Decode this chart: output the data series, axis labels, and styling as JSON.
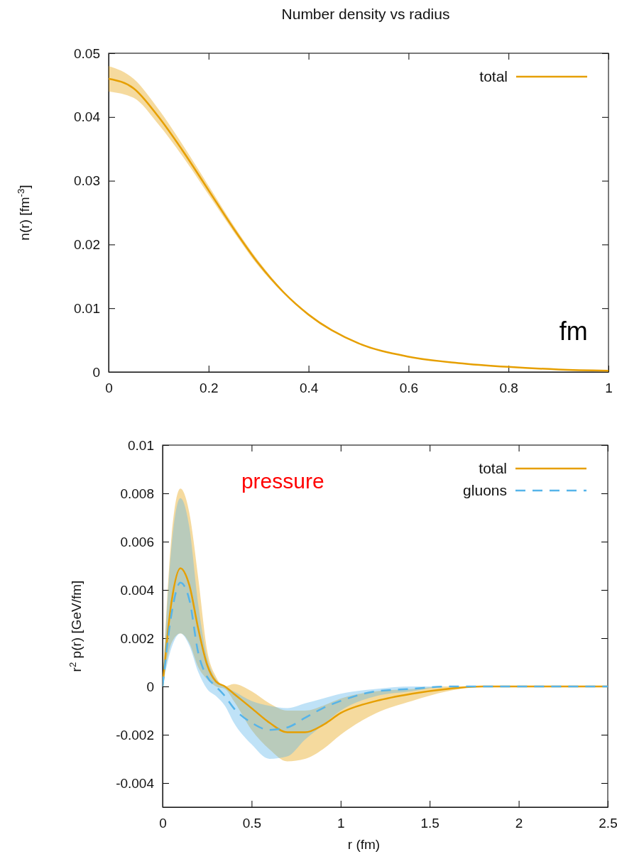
{
  "chart_data": [
    {
      "type": "line",
      "title": "Number density vs radius",
      "ylabel": "n(r) [fm$^{-3}$]",
      "annotations": [
        "fm"
      ],
      "x": [
        0,
        0.05,
        0.1,
        0.15,
        0.2,
        0.25,
        0.3,
        0.35,
        0.4,
        0.5,
        0.6,
        0.7,
        0.8,
        0.9,
        1.0
      ],
      "series": [
        {
          "name": "total",
          "color": "#e69f00",
          "values": [
            0.046,
            0.0445,
            0.04,
            0.0345,
            0.0285,
            0.0225,
            0.017,
            0.0125,
            0.009,
            0.0045,
            0.0024,
            0.0014,
            0.0008,
            0.0004,
            0.0002
          ],
          "lower": [
            0.044,
            0.043,
            0.0388,
            0.0336,
            0.0278,
            0.022,
            0.0166,
            0.0123,
            0.0088,
            0.0045,
            0.0024,
            0.0014,
            0.0008,
            0.0004,
            0.0002
          ],
          "upper": [
            0.048,
            0.046,
            0.0412,
            0.0354,
            0.0292,
            0.023,
            0.0174,
            0.0127,
            0.0092,
            0.0045,
            0.0024,
            0.0014,
            0.0008,
            0.0004,
            0.0002
          ]
        }
      ],
      "xlim": [
        0,
        1
      ],
      "xticks": [
        0,
        0.2,
        0.4,
        0.6,
        0.8,
        1
      ],
      "ylim": [
        0,
        0.05
      ],
      "yticks": [
        0,
        0.01,
        0.02,
        0.03,
        0.04,
        0.05
      ],
      "legend": "top right",
      "grid": false
    },
    {
      "type": "line",
      "xlabel": "r (fm)",
      "ylabel": "r$^{2}$ p(r) [GeV/fm]",
      "annotations": [
        "pressure"
      ],
      "x": [
        0,
        0.05,
        0.1,
        0.15,
        0.2,
        0.25,
        0.3,
        0.35,
        0.4,
        0.5,
        0.6,
        0.7,
        0.8,
        0.9,
        1.0,
        1.2,
        1.4,
        1.6,
        1.8,
        2.0,
        2.25,
        2.5
      ],
      "series": [
        {
          "name": "total",
          "color": "#e69f00",
          "line_style": "solid",
          "values": [
            0,
            0.0035,
            0.0049,
            0.0042,
            0.0024,
            0.0009,
            0.0002,
            0,
            -0.0003,
            -0.0009,
            -0.0015,
            -0.0019,
            -0.0019,
            -0.0016,
            -0.0011,
            -0.0006,
            -0.0003,
            -0.0001,
            0,
            0,
            0,
            0
          ],
          "upper": [
            0,
            0.0062,
            0.0082,
            0.0072,
            0.0045,
            0.0015,
            0.0004,
            0,
            0.0001,
            -0.0002,
            -0.0007,
            -0.001,
            -0.001,
            -0.0008,
            -0.0005,
            -0.0002,
            -0.0001,
            0,
            0,
            0,
            0,
            0
          ],
          "lower": [
            0,
            0.0018,
            0.0022,
            0.0018,
            0.0008,
            0.0003,
            0,
            -0.0001,
            -0.0006,
            -0.0018,
            -0.0026,
            -0.0031,
            -0.003,
            -0.0026,
            -0.002,
            -0.0011,
            -0.0006,
            -0.0002,
            0,
            0,
            0,
            0
          ]
        },
        {
          "name": "gluons",
          "color": "#56b4e9",
          "line_style": "dashed",
          "values": [
            0,
            0.003,
            0.0043,
            0.0036,
            0.0014,
            0.0004,
            0,
            -0.0004,
            -0.0009,
            -0.0015,
            -0.0018,
            -0.0017,
            -0.0013,
            -0.0009,
            -0.0006,
            -0.0002,
            -0.0001,
            0,
            0,
            0,
            0,
            0
          ],
          "upper": [
            0,
            0.0058,
            0.0078,
            0.0066,
            0.0034,
            0.0012,
            0.0003,
            0,
            -0.0002,
            -0.0006,
            -0.0008,
            -0.0009,
            -0.0007,
            -0.0005,
            -0.0003,
            -0.0001,
            0,
            0,
            0,
            0,
            0,
            0
          ],
          "lower": [
            0,
            0.0016,
            0.0022,
            0.0017,
            0.0006,
            -0.0001,
            -0.0004,
            -0.0008,
            -0.0015,
            -0.0024,
            -0.003,
            -0.0029,
            -0.0022,
            -0.0016,
            -0.001,
            -0.0004,
            -0.0002,
            0,
            0,
            0,
            0,
            0
          ]
        }
      ],
      "xlim": [
        0,
        2.5
      ],
      "xticks": [
        0,
        0.5,
        1,
        1.5,
        2,
        2.5
      ],
      "ylim": [
        -0.005,
        0.01
      ],
      "yticks": [
        -0.004,
        -0.002,
        0,
        0.002,
        0.004,
        0.006,
        0.008,
        0.01
      ],
      "legend": "top right",
      "grid": false
    }
  ]
}
